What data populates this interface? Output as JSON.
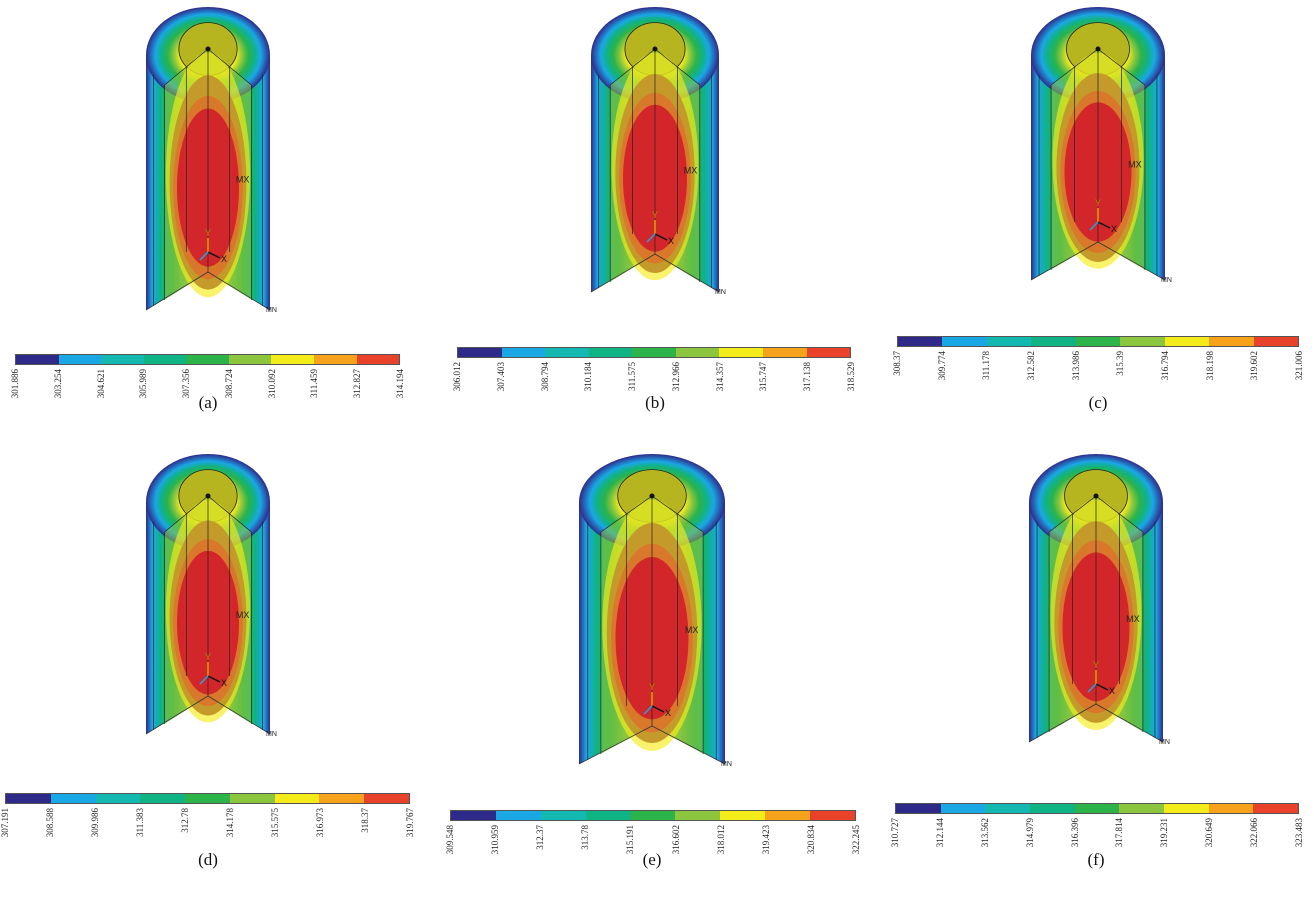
{
  "colors": [
    "#2f2a8a",
    "#1aa7e6",
    "#13b8b0",
    "#10b384",
    "#2cb34a",
    "#8cc63f",
    "#f4ec1a",
    "#f7a21b",
    "#e8432a"
  ],
  "panels": [
    {
      "caption": "(a)",
      "mx_label": "MX",
      "axis_y": "Y",
      "axis_x": "X",
      "min_label": "MN",
      "ticks": [
        "301.886",
        "303.254",
        "304.621",
        "305.989",
        "307.356",
        "308.724",
        "310.092",
        "311.459",
        "312.827",
        "314.194"
      ]
    },
    {
      "caption": "(b)",
      "mx_label": "MX",
      "axis_y": "Y",
      "axis_x": "X",
      "min_label": "MN",
      "ticks": [
        "306.012",
        "307.403",
        "308.794",
        "310.184",
        "311.575",
        "312.966",
        "314.357",
        "315.747",
        "317.138",
        "318.529"
      ]
    },
    {
      "caption": "(c)",
      "mx_label": "MX",
      "axis_y": "Y",
      "axis_x": "X",
      "min_label": "MN",
      "ticks": [
        "308.37",
        "309.774",
        "311.178",
        "312.582",
        "313.986",
        "315.39",
        "316.794",
        "318.198",
        "319.602",
        "321.006"
      ]
    },
    {
      "caption": "(d)",
      "mx_label": "MX",
      "axis_y": "Y",
      "axis_x": "X",
      "min_label": "MN",
      "ticks": [
        "307.191",
        "308.588",
        "309.986",
        "311.383",
        "312.78",
        "314.178",
        "315.575",
        "316.973",
        "318.37",
        "319.767"
      ]
    },
    {
      "caption": "(e)",
      "mx_label": "MX",
      "axis_y": "Y",
      "axis_x": "X",
      "min_label": "MN",
      "ticks": [
        "309.548",
        "310.959",
        "312.37",
        "313.78",
        "315.191",
        "316.602",
        "318.012",
        "319.423",
        "320.834",
        "322.245"
      ]
    },
    {
      "caption": "(f)",
      "mx_label": "MX",
      "axis_y": "Y",
      "axis_x": "X",
      "min_label": "MN",
      "ticks": [
        "310.727",
        "312.144",
        "313.562",
        "314.979",
        "316.396",
        "317.814",
        "319.231",
        "320.649",
        "322.066",
        "323.483"
      ]
    }
  ]
}
